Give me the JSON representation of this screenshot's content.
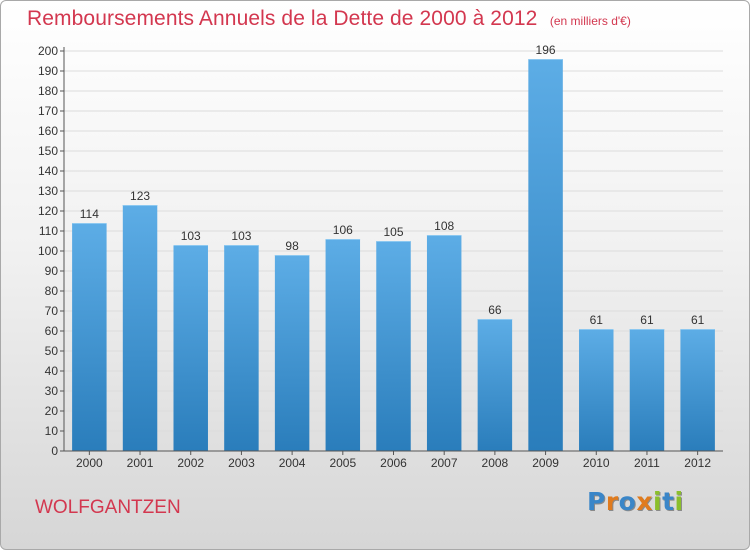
{
  "chart_data": {
    "type": "bar",
    "title": "Remboursements Annuels de la Dette de 2000 à 2012",
    "subtitle": "(en milliers d'€)",
    "categories": [
      "2000",
      "2001",
      "2002",
      "2003",
      "2004",
      "2005",
      "2006",
      "2007",
      "2008",
      "2009",
      "2010",
      "2011",
      "2012"
    ],
    "values": [
      114,
      123,
      103,
      103,
      98,
      106,
      105,
      108,
      66,
      196,
      61,
      61,
      61
    ],
    "ylim": [
      0,
      200
    ],
    "ytick_step": 10,
    "grid": true,
    "bar_color_light": "#5dade6",
    "bar_color_dark": "#2a7dbb"
  },
  "place_name": "WOLFGANTZEN",
  "logo": {
    "text": "Proxiti",
    "letter_colors": [
      "#3a86c8",
      "#e07b1e",
      "#3a86c8",
      "#e07b1e",
      "#8bbf2b",
      "#3a86c8",
      "#8bbf2b"
    ]
  }
}
